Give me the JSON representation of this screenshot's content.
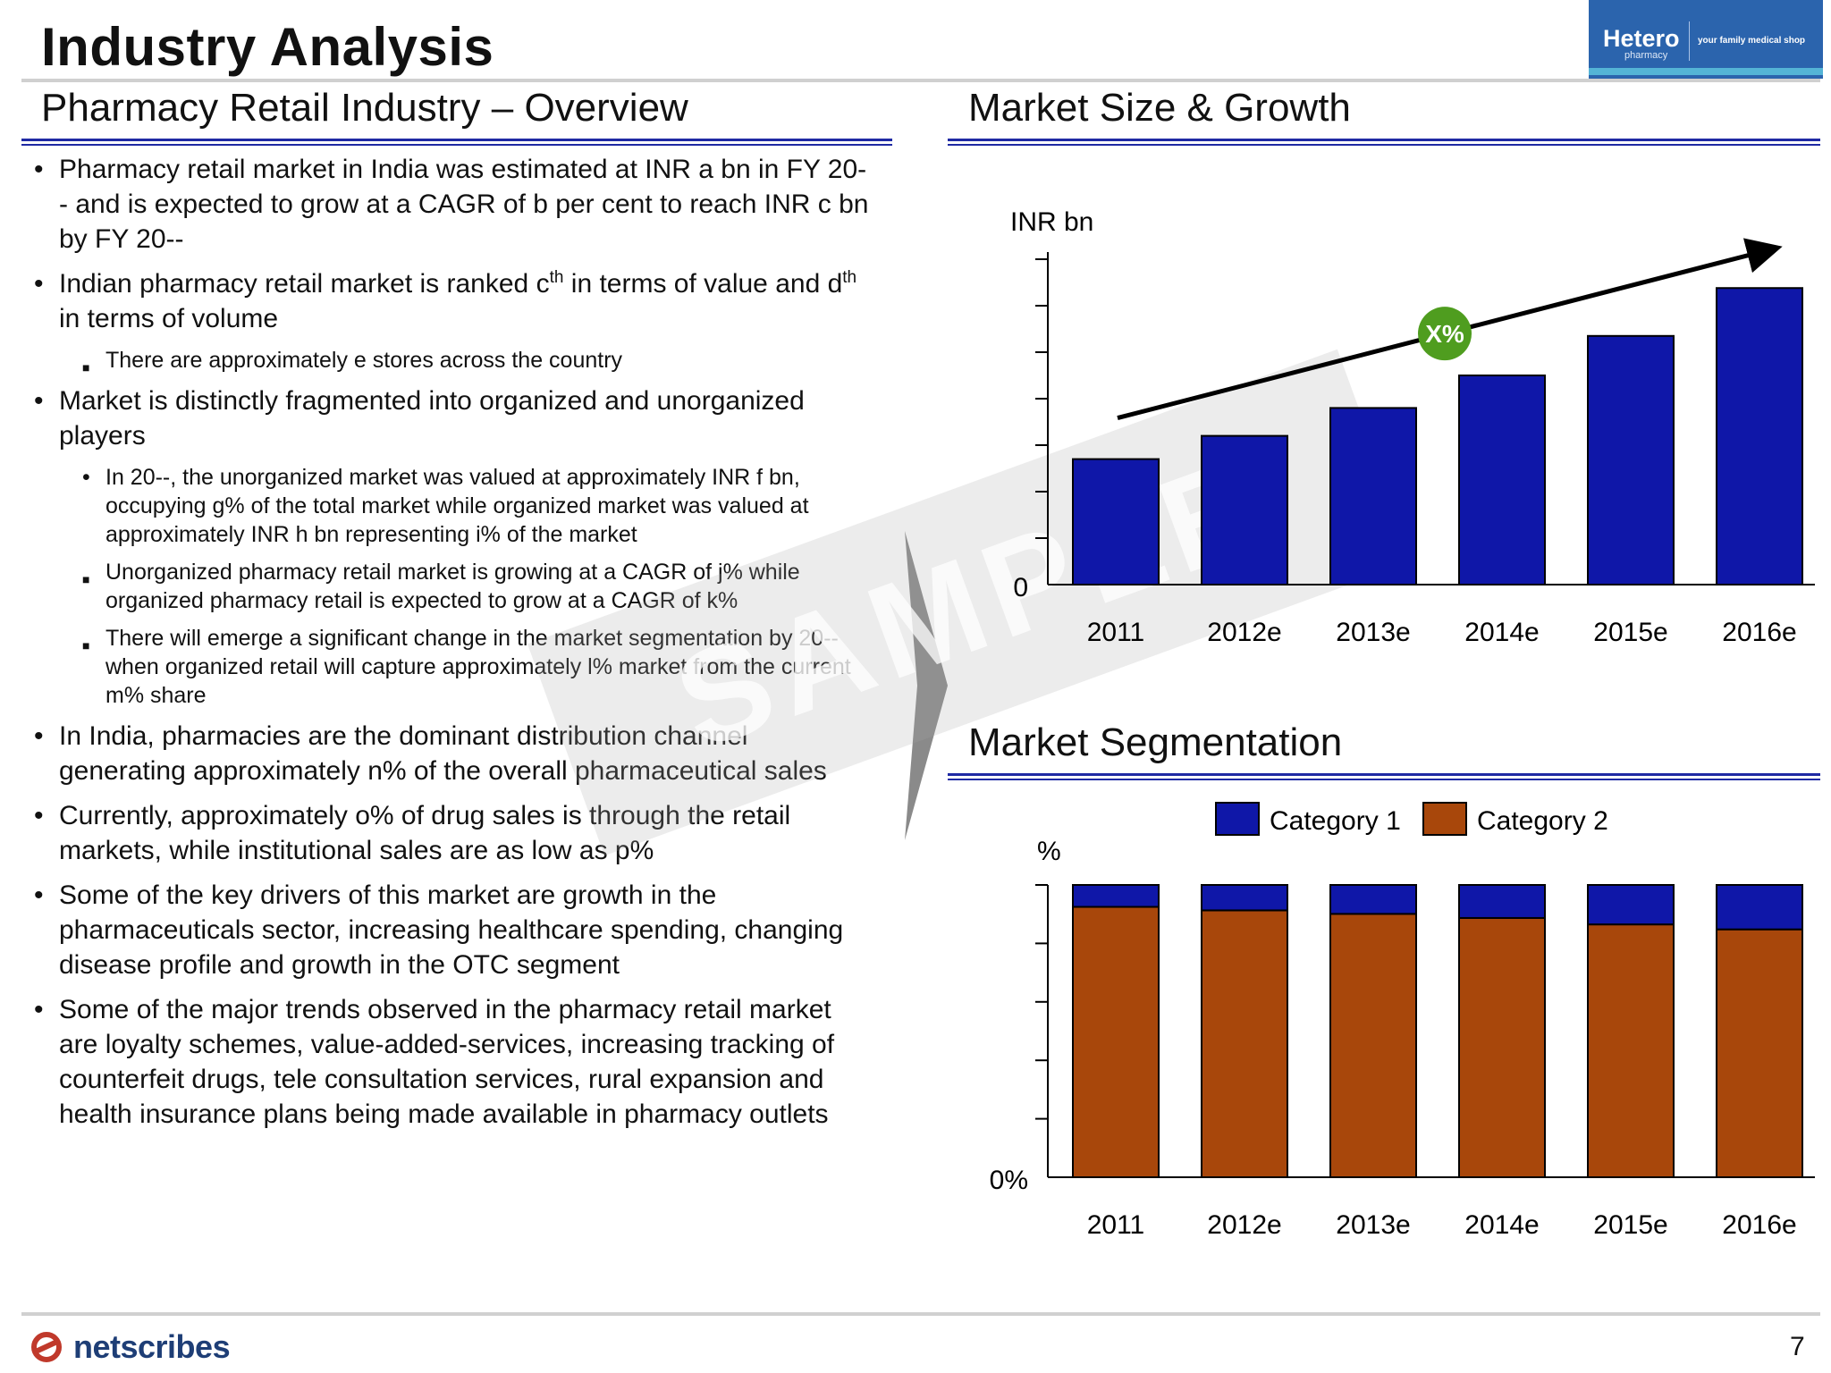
{
  "header": {
    "title": "Industry Analysis",
    "logo": {
      "brand": "Hetero",
      "sub": "pharmacy",
      "tagline": "your family medical shop",
      "color": "#2b64ad"
    }
  },
  "left": {
    "heading": "Pharmacy Retail Industry – Overview",
    "bullets": [
      {
        "level": 1,
        "text": "Pharmacy retail market in India was estimated at INR a bn in FY 20-- and is expected to grow at a CAGR of b per cent to reach INR c bn by FY 20--"
      },
      {
        "level": 1,
        "parts": [
          "Indian pharmacy retail market is ranked c",
          "th",
          " in terms of value and d",
          "th",
          " in terms of volume"
        ]
      },
      {
        "level": 2,
        "marker": "square",
        "text": "There are approximately e stores across the country"
      },
      {
        "level": 1,
        "text": "Market is distinctly fragmented into organized and unorganized players"
      },
      {
        "level": 2,
        "marker": "dot",
        "text": "In 20--, the unorganized market was valued at approximately INR f bn, occupying g% of the total market while organized market was valued at approximately INR h bn representing i% of the market"
      },
      {
        "level": 2,
        "marker": "square",
        "text": "Unorganized pharmacy retail market is growing at a CAGR of j% while organized pharmacy retail is expected to grow at a CAGR of k%"
      },
      {
        "level": 2,
        "marker": "square",
        "text": "There will emerge a significant change in the market segmentation by 20-- when organized retail will capture approximately l% market from the current m% share"
      },
      {
        "level": 1,
        "text": "In India, pharmacies are the dominant distribution channel generating approximately n% of the overall pharmaceutical sales"
      },
      {
        "level": 1,
        "text": "Currently, approximately o% of drug sales is through the retail markets, while institutional sales are as low as p%"
      },
      {
        "level": 1,
        "text": "Some of the key drivers of this market are growth in the pharmaceuticals sector, increasing healthcare spending, changing disease profile and growth in the OTC segment"
      },
      {
        "level": 1,
        "text": "Some of the major trends observed in the pharmacy retail market are loyalty schemes, value-added-services, increasing tracking of counterfeit drugs, tele consultation services, rural expansion and health insurance plans being made available in pharmacy outlets"
      }
    ]
  },
  "watermark": "SAMPLE",
  "chart_data": [
    {
      "type": "bar",
      "heading": "Market Size & Growth",
      "ylabel": "INR bn",
      "y_zero_label": "0",
      "categories": [
        "2011",
        "2012e",
        "2013e",
        "2014e",
        "2015e",
        "2016e"
      ],
      "values": [
        2.7,
        3.2,
        3.8,
        4.5,
        5.35,
        6.38
      ],
      "ylim": [
        0,
        7
      ],
      "growth_badge": "X%",
      "color": "#0f17a8",
      "badge_color": "#4f9d1f"
    },
    {
      "type": "bar",
      "stacked": true,
      "heading": "Market Segmentation",
      "ylabel": "%",
      "y_zero_label": "0%",
      "categories": [
        "2011",
        "2012e",
        "2013e",
        "2014e",
        "2015e",
        "2016e"
      ],
      "ylim": [
        0,
        100
      ],
      "legend_position": "top",
      "series": [
        {
          "name": "Category 2",
          "values": [
            92.5,
            91.3,
            90.1,
            88.7,
            86.5,
            84.8
          ],
          "color": "#a8470b"
        },
        {
          "name": "Category 1",
          "values": [
            7.5,
            8.7,
            9.9,
            11.3,
            13.5,
            15.2
          ],
          "color": "#0f17a8"
        }
      ]
    }
  ],
  "footer": {
    "logo_text": "netscribes",
    "page_number": "7"
  }
}
